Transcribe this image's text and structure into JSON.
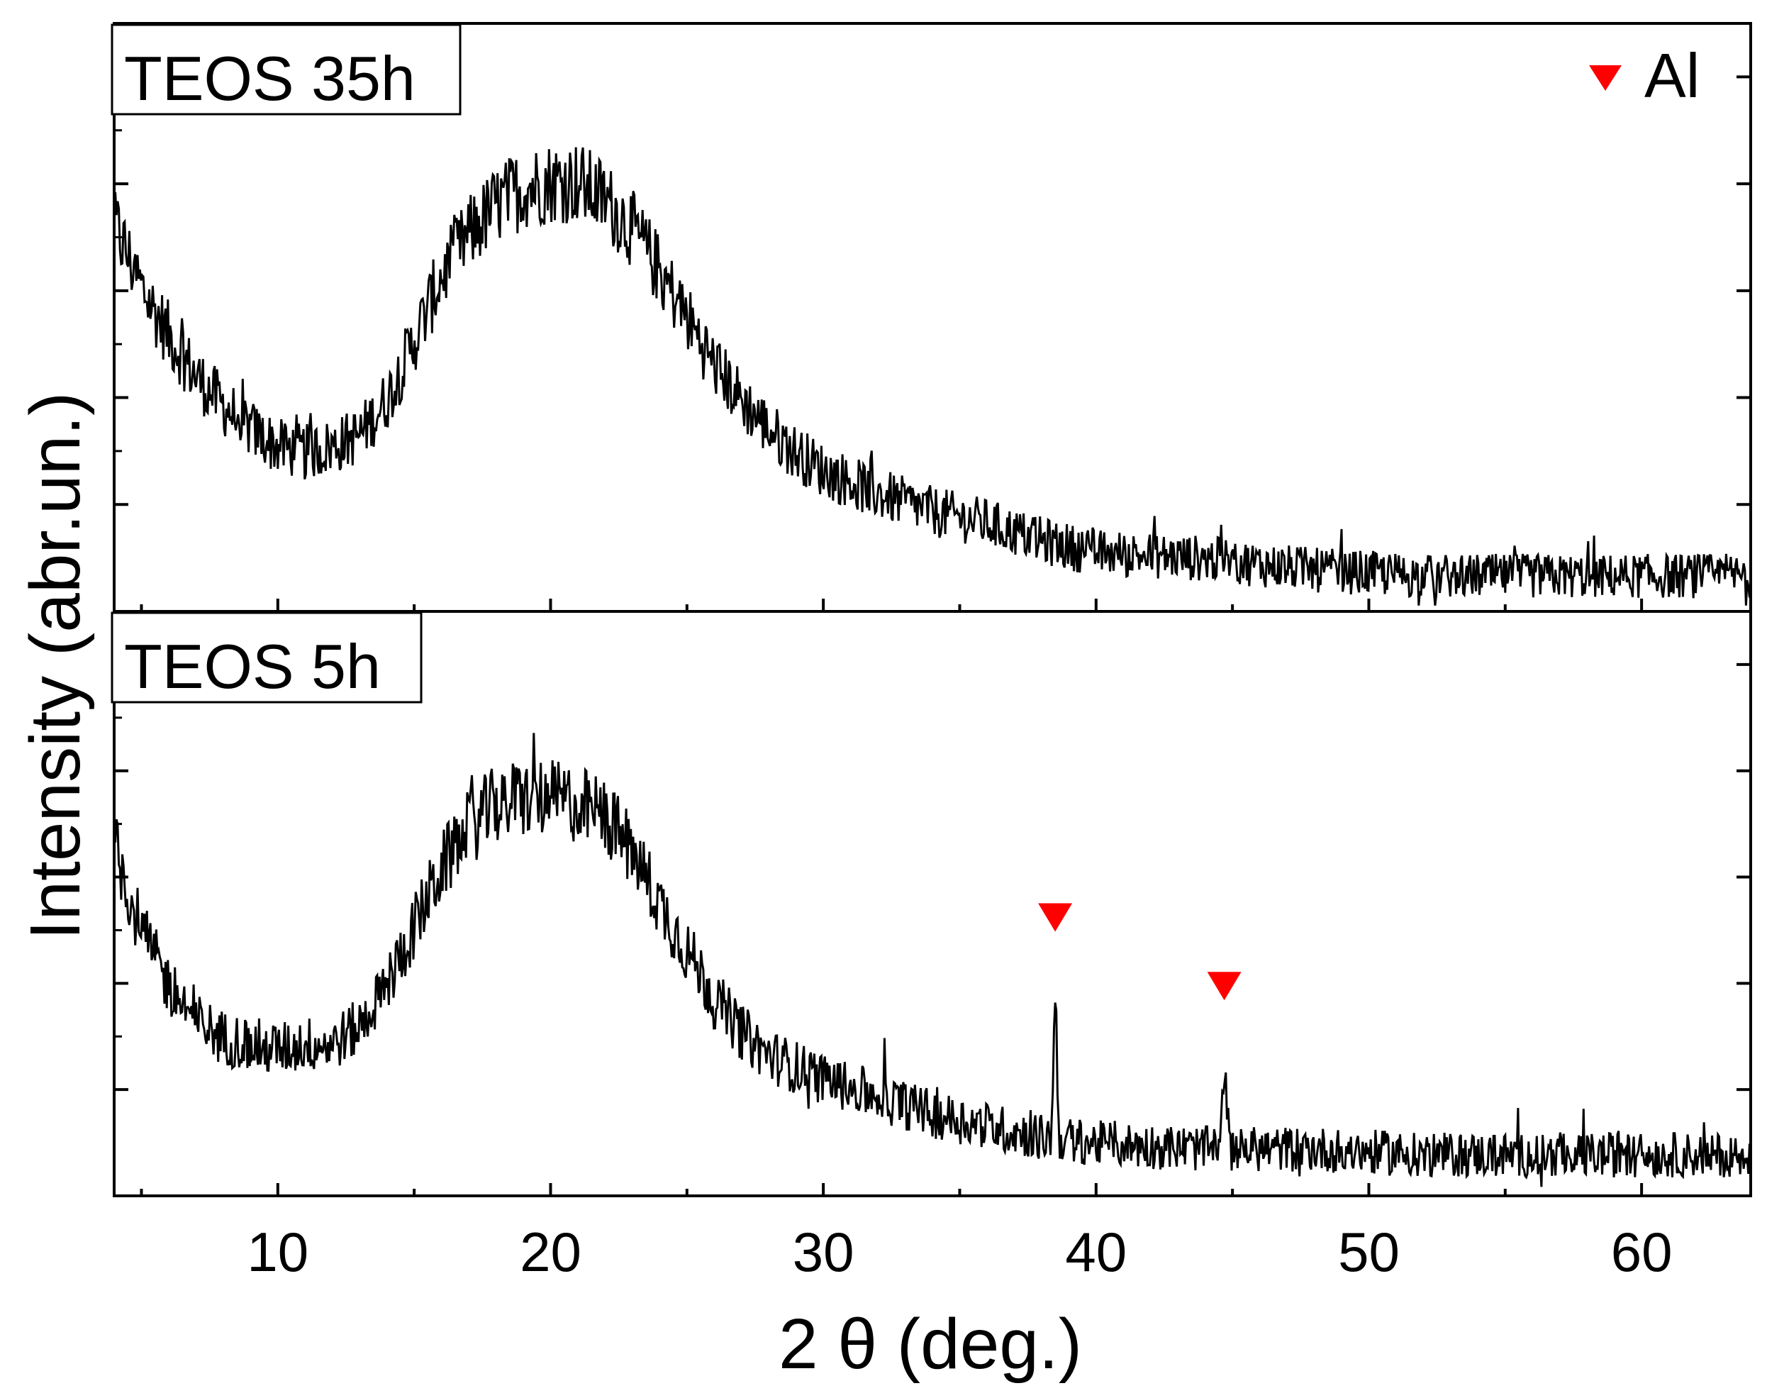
{
  "chart_data": {
    "type": "line",
    "xlabel": "2 θ (deg.)",
    "ylabel": "Intensity (abr.un.)",
    "xlim": [
      4,
      64
    ],
    "xticks": [
      10,
      20,
      30,
      40,
      50,
      60
    ],
    "xtick_labels": [
      "10",
      "20",
      "30",
      "40",
      "50",
      "60"
    ],
    "ylim": [
      0,
      1
    ],
    "colors": {
      "line": "#000000",
      "marker": "#ff0000",
      "frame": "#000000"
    },
    "legend": {
      "label": "Al",
      "marker": "down-triangle",
      "placement": "top-right"
    },
    "panels": [
      {
        "label": "TEOS 35h",
        "series": {
          "name": "TEOS 35h",
          "x": [
            4,
            5,
            6,
            7,
            8,
            9,
            10,
            11,
            12,
            13,
            14,
            15,
            16,
            17,
            18,
            19,
            20,
            21,
            22,
            23,
            24,
            25,
            26,
            27,
            28,
            29,
            30,
            32,
            34,
            36,
            38,
            40,
            44,
            48,
            52,
            56,
            60,
            64
          ],
          "y": [
            0.66,
            0.55,
            0.47,
            0.4,
            0.35,
            0.31,
            0.28,
            0.27,
            0.28,
            0.3,
            0.36,
            0.46,
            0.57,
            0.64,
            0.69,
            0.72,
            0.73,
            0.73,
            0.7,
            0.65,
            0.58,
            0.5,
            0.42,
            0.36,
            0.31,
            0.27,
            0.24,
            0.2,
            0.17,
            0.15,
            0.12,
            0.1,
            0.09,
            0.07,
            0.06,
            0.06,
            0.06,
            0.06
          ]
        },
        "peaks": []
      },
      {
        "label": "TEOS 5h",
        "series": {
          "name": "TEOS 5h",
          "x": [
            4,
            5,
            6,
            7,
            8,
            9,
            10,
            11,
            12,
            13,
            14,
            15,
            16,
            17,
            18,
            19,
            20,
            21,
            22,
            23,
            24,
            25,
            26,
            27,
            28,
            29,
            30,
            32,
            34,
            36,
            38,
            40,
            44,
            48,
            52,
            56,
            60,
            64
          ],
          "y": [
            0.6,
            0.45,
            0.36,
            0.3,
            0.27,
            0.26,
            0.25,
            0.26,
            0.26,
            0.29,
            0.36,
            0.46,
            0.56,
            0.63,
            0.67,
            0.68,
            0.68,
            0.67,
            0.65,
            0.59,
            0.5,
            0.42,
            0.34,
            0.28,
            0.24,
            0.22,
            0.2,
            0.17,
            0.14,
            0.12,
            0.1,
            0.09,
            0.08,
            0.08,
            0.07,
            0.07,
            0.07,
            0.07
          ]
        },
        "peaks": [
          {
            "x": 38.5,
            "height": 0.3,
            "label": "Al"
          },
          {
            "x": 44.7,
            "height": 0.2,
            "label": "Al"
          }
        ]
      }
    ]
  }
}
